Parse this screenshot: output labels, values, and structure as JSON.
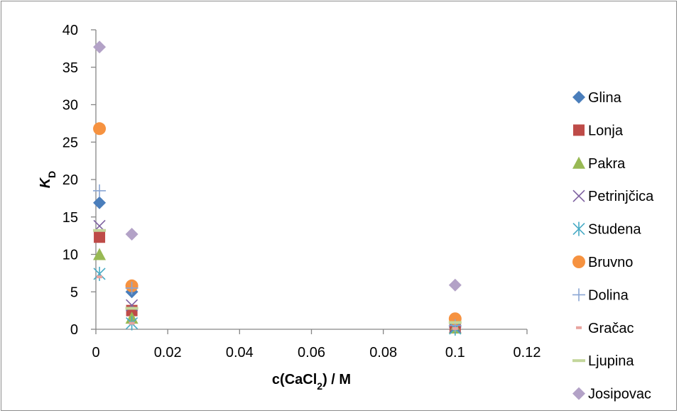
{
  "chart_data": {
    "type": "scatter",
    "title": "",
    "xlabel": "c(CaCl2) / M",
    "xlabel_parts": {
      "main": "c(CaCl",
      "sub": "2",
      "tail": ") / M"
    },
    "ylabel": "KD",
    "ylabel_parts": {
      "main": "K",
      "sub": "D"
    },
    "xlim": [
      0,
      0.12
    ],
    "ylim": [
      0,
      40
    ],
    "x_ticks": [
      0,
      0.02,
      0.04,
      0.06,
      0.08,
      0.1,
      0.12
    ],
    "x_tick_labels": [
      "0",
      "0.02",
      "0.04",
      "0.06",
      "0.08",
      "0.1",
      "0.12"
    ],
    "y_ticks": [
      0,
      5,
      10,
      15,
      20,
      25,
      30,
      35,
      40
    ],
    "y_tick_labels": [
      "0",
      "5",
      "10",
      "15",
      "20",
      "25",
      "30",
      "35",
      "40"
    ],
    "grid": false,
    "legend_position": "right",
    "series": [
      {
        "name": "Glina",
        "marker": "diamond",
        "color": "#4a7ebb",
        "points": [
          [
            0.001,
            16.9
          ],
          [
            0.01,
            5.0
          ],
          [
            0.1,
            0.3
          ]
        ]
      },
      {
        "name": "Lonja",
        "marker": "square",
        "color": "#be4b48",
        "points": [
          [
            0.001,
            12.3
          ],
          [
            0.01,
            2.5
          ],
          [
            0.1,
            0.2
          ]
        ]
      },
      {
        "name": "Pakra",
        "marker": "triangle",
        "color": "#98b954",
        "points": [
          [
            0.001,
            10.0
          ],
          [
            0.01,
            1.5
          ],
          [
            0.1,
            0.2
          ]
        ]
      },
      {
        "name": "Petrinjčica",
        "marker": "x",
        "color": "#7d60a0",
        "points": [
          [
            0.001,
            13.8
          ],
          [
            0.01,
            3.2
          ],
          [
            0.1,
            0.3
          ]
        ]
      },
      {
        "name": "Studena",
        "marker": "asterisk",
        "color": "#46aac5",
        "points": [
          [
            0.001,
            7.4
          ],
          [
            0.01,
            0.8
          ],
          [
            0.1,
            0.1
          ]
        ]
      },
      {
        "name": "Bruvno",
        "marker": "circle",
        "color": "#f69240",
        "points": [
          [
            0.001,
            26.8
          ],
          [
            0.01,
            5.8
          ],
          [
            0.1,
            1.4
          ]
        ]
      },
      {
        "name": "Dolina",
        "marker": "plus",
        "color": "#8aa6d4",
        "points": [
          [
            0.001,
            18.5
          ],
          [
            0.01,
            5.5
          ],
          [
            0.1,
            0.5
          ]
        ]
      },
      {
        "name": "Gračac",
        "marker": "dash",
        "color": "#e8a4a0",
        "points": [
          [
            0.001,
            7.0
          ],
          [
            0.01,
            0.8
          ],
          [
            0.1,
            0.1
          ]
        ]
      },
      {
        "name": "Ljupina",
        "marker": "hline",
        "color": "#c3d69b",
        "points": [
          [
            0.001,
            13.2
          ],
          [
            0.01,
            2.8
          ],
          [
            0.1,
            0.9
          ]
        ]
      },
      {
        "name": "Josipovac",
        "marker": "diamond",
        "color": "#b3a2c7",
        "points": [
          [
            0.001,
            37.7
          ],
          [
            0.01,
            12.7
          ],
          [
            0.1,
            5.9
          ]
        ]
      }
    ]
  }
}
